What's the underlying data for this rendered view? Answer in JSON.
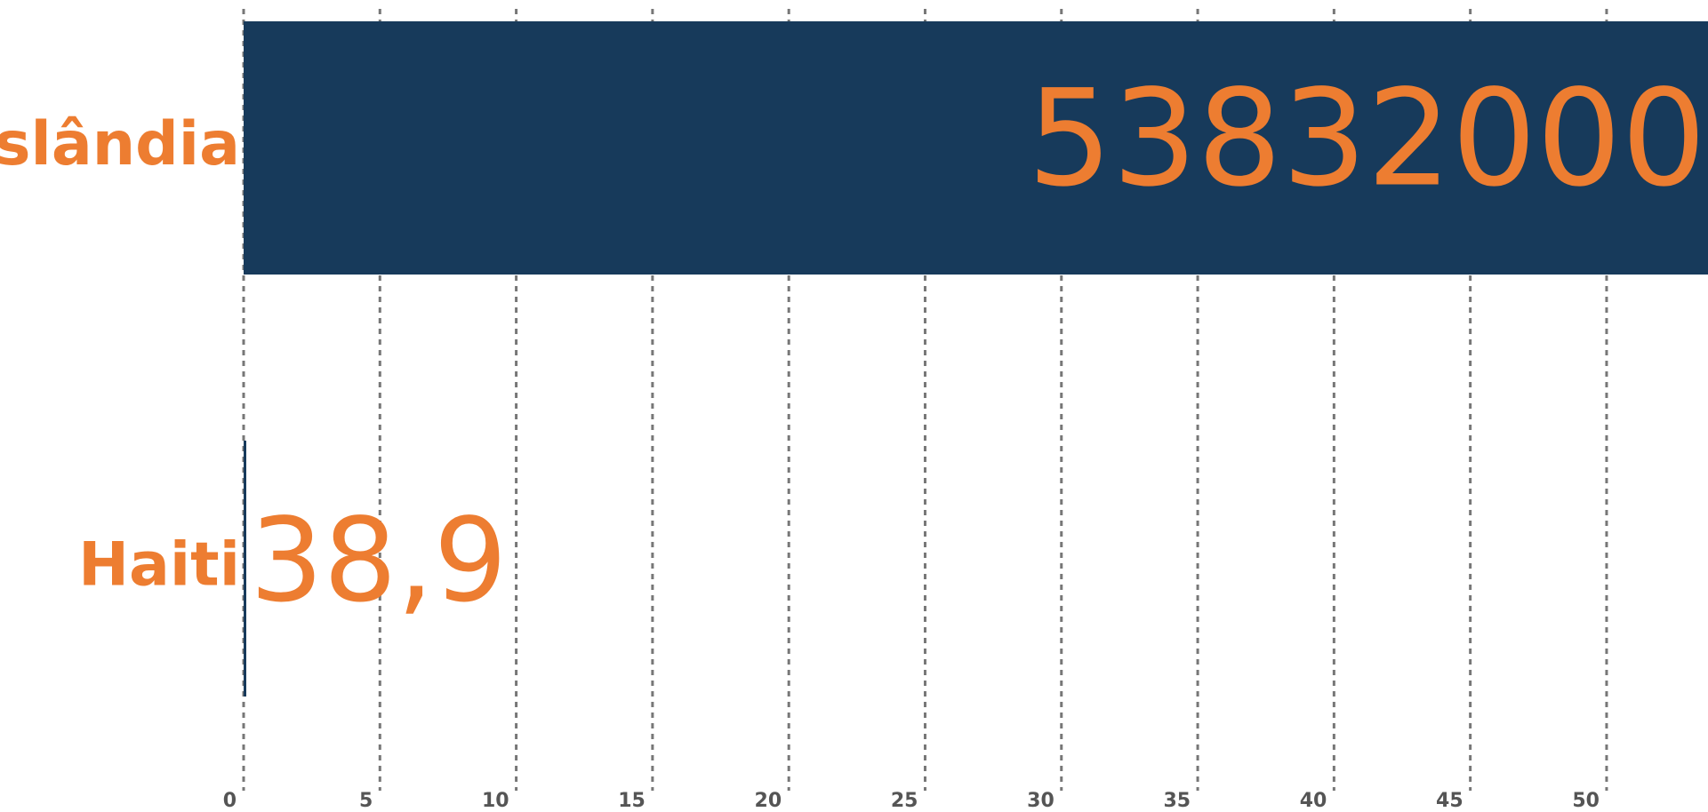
{
  "chart_data": {
    "type": "bar",
    "orientation": "horizontal",
    "categories": [
      "Islândia",
      "Haiti"
    ],
    "values": [
      53832000,
      38.9
    ],
    "value_labels": [
      "53832000",
      "38,9"
    ],
    "color": "#173a5b",
    "xlim": [
      0,
      53720000
    ],
    "xticks": [
      0,
      {
        "value": 5000000,
        "label": "5"
      },
      {
        "value": 10000000,
        "label": "10"
      },
      {
        "value": 15000000,
        "label": "15"
      },
      {
        "value": 20000000,
        "label": "20"
      },
      {
        "value": 25000000,
        "label": "25"
      },
      {
        "value": 30000000,
        "label": "30"
      },
      {
        "value": 35000000,
        "label": "35"
      },
      {
        "value": 40000000,
        "label": "40"
      },
      {
        "value": 45000000,
        "label": "45"
      },
      {
        "value": 50000000,
        "label": "50"
      }
    ],
    "grid": true
  }
}
